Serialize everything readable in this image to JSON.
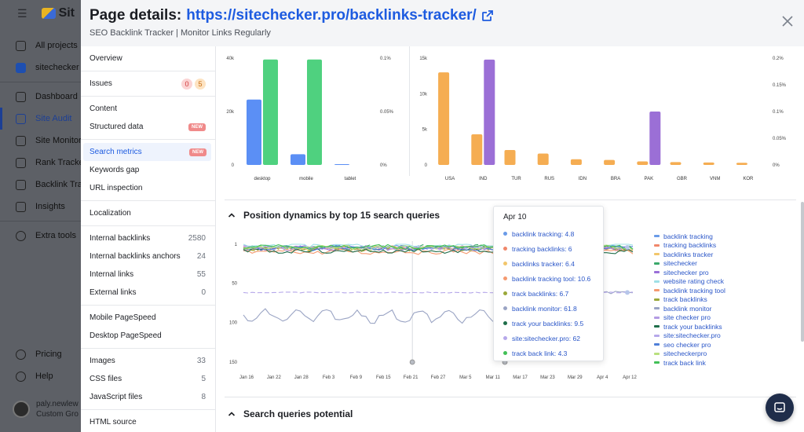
{
  "app": {
    "brand": "Sit",
    "nav": [
      {
        "label": "All projects"
      },
      {
        "label": "sitechecker"
      },
      {
        "label": "Dashboard"
      },
      {
        "label": "Site Audit"
      },
      {
        "label": "Site Monitor"
      },
      {
        "label": "Rank Tracker"
      },
      {
        "label": "Backlink Tra"
      },
      {
        "label": "Insights"
      },
      {
        "label": "Extra tools"
      }
    ],
    "bottom_nav": [
      {
        "label": "Pricing"
      },
      {
        "label": "Help"
      }
    ],
    "user": {
      "name": "paly.newlew",
      "group": "Custom Gro"
    }
  },
  "modal": {
    "title_prefix": "Page details:",
    "title_url": "https://sitechecker.pro/backlinks-tracker/",
    "subtitle": "SEO Backlink Tracker | Monitor Links Regularly"
  },
  "left_nav": {
    "overview": "Overview",
    "issues": {
      "label": "Issues",
      "errors": "0",
      "warnings": "5"
    },
    "content": "Content",
    "structured_data": {
      "label": "Structured data",
      "badge": "NEW"
    },
    "search_metrics": {
      "label": "Search metrics",
      "badge": "NEW"
    },
    "keywords_gap": "Keywords gap",
    "url_inspection": "URL inspection",
    "localization": "Localization",
    "internal_backlinks": {
      "label": "Internal backlinks",
      "count": "2580"
    },
    "internal_backlinks_anchors": {
      "label": "Internal backlinks anchors",
      "count": "24"
    },
    "internal_links": {
      "label": "Internal links",
      "count": "55"
    },
    "external_links": {
      "label": "External links",
      "count": "0"
    },
    "mobile_pagespeed": "Mobile PageSpeed",
    "desktop_pagespeed": "Desktop PageSpeed",
    "images": {
      "label": "Images",
      "count": "33"
    },
    "css_files": {
      "label": "CSS files",
      "count": "5"
    },
    "javascript_files": {
      "label": "JavaScript files",
      "count": "8"
    },
    "html_source": "HTML source"
  },
  "sections": {
    "position_dynamics": "Position dynamics by top 15 search queries",
    "search_queries_potential": "Search queries potential"
  },
  "colors": {
    "blue": "#5b8ff5",
    "green": "#4fd17f",
    "orange": "#f5ad52",
    "purple": "#9b6fd6"
  },
  "chart_data": [
    {
      "type": "bar",
      "categories": [
        "desktop",
        "mobile",
        "tablet"
      ],
      "series": [
        {
          "values": [
            24500,
            4000,
            300
          ]
        },
        {
          "values": [
            39500,
            39500,
            0
          ]
        }
      ],
      "y_left_ticks": [
        "0",
        "20k",
        "40k"
      ],
      "ylim": [
        0,
        40000
      ],
      "y_right_ticks": [
        "0%",
        "0.05%",
        "0.1%"
      ]
    },
    {
      "type": "bar",
      "categories": [
        "USA",
        "IND",
        "TUR",
        "RUS",
        "IDN",
        "BRA",
        "PAK",
        "GBR",
        "VNM",
        "KOR"
      ],
      "series": [
        {
          "values": [
            13000,
            4300,
            2100,
            1600,
            800,
            700,
            500,
            400,
            350,
            300
          ]
        },
        {
          "values": [
            0,
            14800,
            0,
            0,
            0,
            0,
            7500,
            0,
            0,
            0
          ]
        }
      ],
      "y_left_ticks": [
        "0",
        "5k",
        "10k",
        "15k"
      ],
      "ylim": [
        0,
        15000
      ],
      "y_right_ticks": [
        "0%",
        "0.05%",
        "0.1%",
        "0.15%",
        "0.2%"
      ]
    },
    {
      "type": "line",
      "x": [
        "Jan 16",
        "Jan 22",
        "Jan 28",
        "Feb 3",
        "Feb 9",
        "Feb 15",
        "Feb 21",
        "Feb 27",
        "Mar 5",
        "Mar 11",
        "Mar 17",
        "Mar 23",
        "Mar 29",
        "Apr 4",
        "Apr 12"
      ],
      "y_ticks": [
        "1",
        "50",
        "100",
        "150"
      ],
      "ylim": [
        1,
        150
      ],
      "y_inverted": true,
      "legend": "right",
      "series": [
        {
          "name": "backlink tracking",
          "color": "#6a9be8",
          "level": 4.8
        },
        {
          "name": "tracking backlinks",
          "color": "#f0876a",
          "level": 6
        },
        {
          "name": "backlinks tracker",
          "color": "#f2c66b",
          "level": 6.4
        },
        {
          "name": "sitechecker",
          "color": "#3aa86a",
          "level": 5
        },
        {
          "name": "sitechecker pro",
          "color": "#9a6fd8",
          "level": 6
        },
        {
          "name": "website rating check",
          "color": "#9fe0e6",
          "level": 3
        },
        {
          "name": "backlink tracking tool",
          "color": "#f59a70",
          "level": 10.6
        },
        {
          "name": "track backlinks",
          "color": "#9aa83a",
          "level": 6.7
        },
        {
          "name": "backlink monitor",
          "color": "#9aa4c4",
          "level": 61.8
        },
        {
          "name": "site checker pro",
          "color": "#b39be3",
          "level": 6
        },
        {
          "name": "track your backlinks",
          "color": "#1f6e4a",
          "level": 9.5
        },
        {
          "name": "site:sitechecker.pro",
          "color": "#b6a8ea",
          "level": 62
        },
        {
          "name": "seo checker pro",
          "color": "#4f7fd8",
          "level": 6
        },
        {
          "name": "sitecheckerpro",
          "color": "#b9e07e",
          "level": 5
        },
        {
          "name": "track back link",
          "color": "#42c057",
          "level": 4.3
        }
      ],
      "tooltip": {
        "title": "Apr 10",
        "rows": [
          {
            "text": "backlink tracking: 4.8",
            "color": "#6a9be8"
          },
          {
            "text": "tracking backlinks: 6",
            "color": "#f0876a"
          },
          {
            "text": "backlinks tracker: 6.4",
            "color": "#f2c66b"
          },
          {
            "text": "backlink tracking tool: 10.6",
            "color": "#f59a70"
          },
          {
            "text": "track backlinks: 6.7",
            "color": "#9aa83a"
          },
          {
            "text": "backlink monitor: 61.8",
            "color": "#9aa4c4"
          },
          {
            "text": "track your backlinks: 9.5",
            "color": "#1f6e4a"
          },
          {
            "text": "site:sitechecker.pro: 62",
            "color": "#b6a8ea"
          },
          {
            "text": "track back link: 4.3",
            "color": "#42c057"
          }
        ]
      }
    }
  ]
}
